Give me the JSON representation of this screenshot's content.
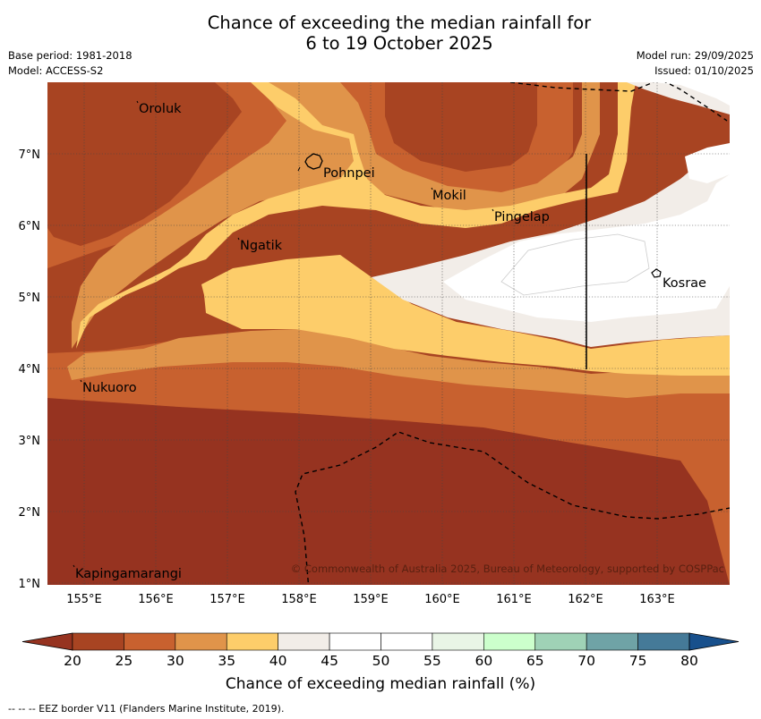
{
  "header": {
    "title_line1": "Chance of exceeding the median rainfall for",
    "title_line2": "6 to 19 October 2025",
    "base_period": "Base period: 1981-2018",
    "model": "Model: ACCESS-S2",
    "model_run": "Model run: 29/09/2025",
    "issued": "Issued: 01/10/2025"
  },
  "map": {
    "lon_ticks": [
      "155°E",
      "156°E",
      "157°E",
      "158°E",
      "159°E",
      "160°E",
      "161°E",
      "162°E",
      "163°E"
    ],
    "lat_ticks": [
      "7°N",
      "6°N",
      "5°N",
      "4°N",
      "3°N",
      "2°N",
      "1°N"
    ],
    "places": [
      {
        "name": "Oroluk"
      },
      {
        "name": "Pohnpei"
      },
      {
        "name": "Mokil"
      },
      {
        "name": "Pingelap"
      },
      {
        "name": "Ngatik"
      },
      {
        "name": "Kosrae"
      },
      {
        "name": "Nukuoro"
      },
      {
        "name": "Kapingamarangi"
      }
    ],
    "copyright": "© Commonwealth of Australia 2025, Bureau of Meteorology, supported by COSPPac"
  },
  "colorbar": {
    "label": "Chance of exceeding median rainfall (%)",
    "ticks": [
      "20",
      "25",
      "30",
      "35",
      "40",
      "45",
      "50",
      "55",
      "60",
      "65",
      "70",
      "75",
      "80"
    ],
    "colors": [
      "#a84422",
      "#c8612f",
      "#e0944a",
      "#fdcd6a",
      "#f2ede8",
      "#ffffff",
      "#ffffff",
      "#e9f5e6",
      "#ccffcc",
      "#9fd2b6",
      "#6fa3a6",
      "#457a98",
      "#18508c"
    ],
    "under_color": "#963320",
    "over_color": "#18508c"
  },
  "footer": {
    "eez_note": "--  --  -- EEZ border V11 (Flanders Marine Institute, 2019)."
  }
}
